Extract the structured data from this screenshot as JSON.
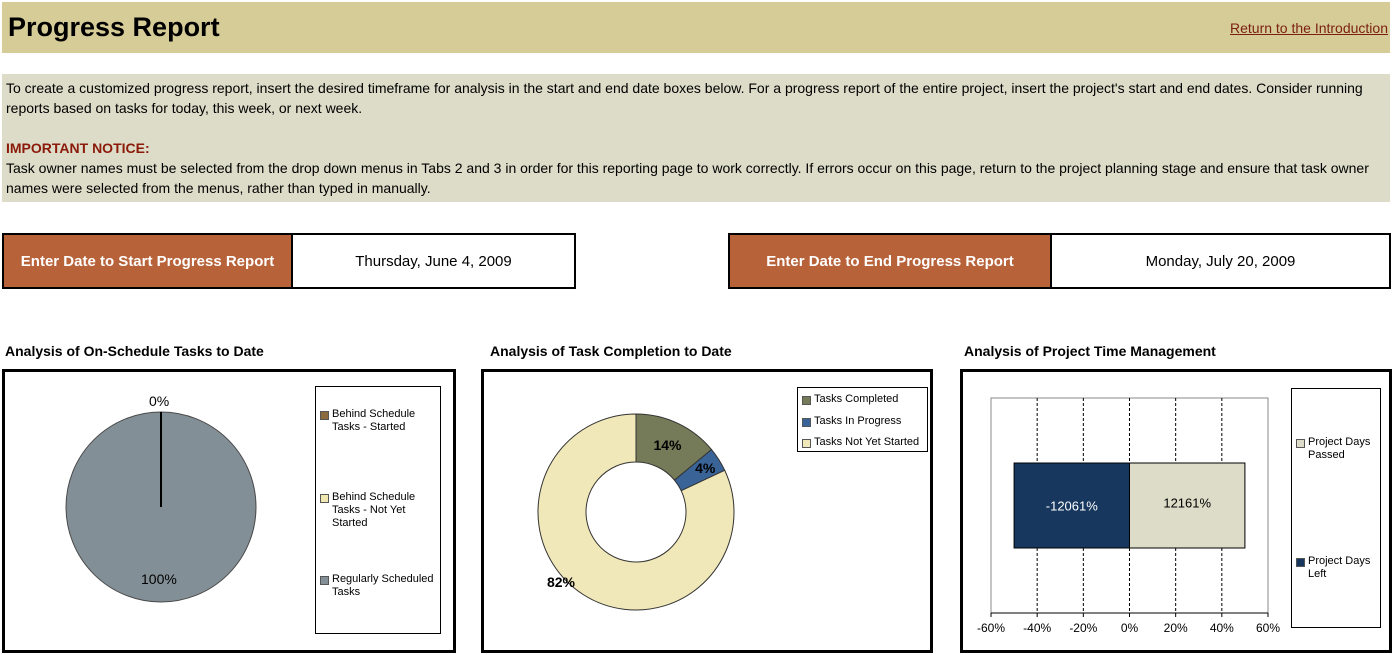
{
  "header": {
    "title": "Progress Report",
    "return_link": "Return to the Introduction"
  },
  "info": {
    "paragraph": "To create a customized progress report, insert the desired timeframe for analysis in the start and end date boxes below. For a progress report of the entire project, insert the project's start and end dates. Consider running reports based on tasks for today, this week, or next week.",
    "notice_title": "IMPORTANT NOTICE:",
    "notice_body": "Task owner names must be selected from the drop down menus in Tabs 2 and 3 in order for this reporting page to work correctly. If errors occur on this page, return to the project planning stage and ensure that task owner names were selected from the menus, rather than typed in manually."
  },
  "dates": {
    "start_label": "Enter Date to Start Progress Report",
    "start_value": "Thursday, June 4, 2009",
    "end_label": "Enter Date to End Progress Report",
    "end_value": "Monday, July 20, 2009"
  },
  "colors": {
    "header_bg": "#d6cc97",
    "info_bg": "#dcdcc8",
    "date_label_bg": "#b8623a",
    "notice_text": "#8b1a0a"
  },
  "chart_data": [
    {
      "type": "pie",
      "title": "Analysis of On-Schedule Tasks to Date",
      "series": [
        {
          "name": "Behind Schedule Tasks - Started",
          "value": 0,
          "color": "#8b6a3e"
        },
        {
          "name": "Behind Schedule Tasks - Not Yet Started",
          "value": 0,
          "color": "#f0e8b0"
        },
        {
          "name": "Regularly Scheduled Tasks",
          "value": 100,
          "color": "#838f96"
        }
      ],
      "labels": [
        "0%",
        "100%"
      ],
      "legend": "right"
    },
    {
      "type": "pie",
      "subtype": "donut",
      "title": "Analysis of Task Completion to Date",
      "series": [
        {
          "name": "Tasks Completed",
          "value": 14,
          "color": "#757b58"
        },
        {
          "name": "Tasks In Progress",
          "value": 4,
          "color": "#3a6497"
        },
        {
          "name": "Tasks Not Yet Started",
          "value": 82,
          "color": "#f0e8b8"
        }
      ],
      "labels": [
        "14%",
        "4%",
        "82%"
      ],
      "legend": "top-right"
    },
    {
      "type": "bar",
      "orientation": "horizontal",
      "stacked": true,
      "title": "Analysis of Project Time Management",
      "series": [
        {
          "name": "Project Days Passed",
          "value": 12161,
          "label": "12161%",
          "color": "#dcdcc8"
        },
        {
          "name": "Project Days Left",
          "value": -12061,
          "label": "-12061%",
          "color": "#17375e"
        }
      ],
      "xlim": [
        -60,
        60
      ],
      "xticks": [
        "-60%",
        "-40%",
        "-20%",
        "0%",
        "20%",
        "40%",
        "60%"
      ],
      "grid": true,
      "legend": "right"
    }
  ]
}
